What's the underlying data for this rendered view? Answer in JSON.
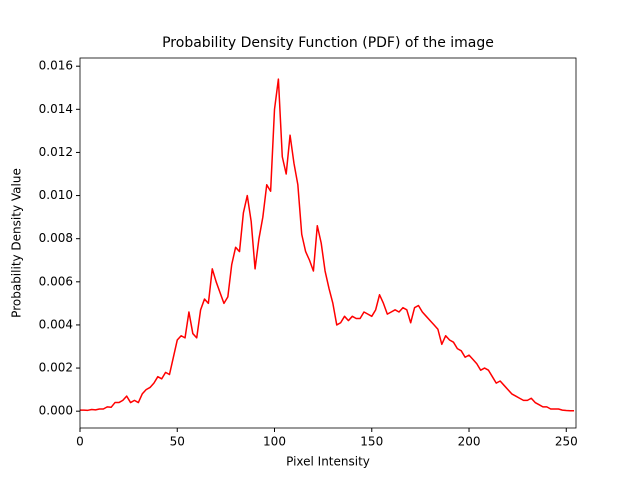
{
  "chart_data": {
    "type": "line",
    "title": "Probability Density Function (PDF) of the image",
    "xlabel": "Pixel Intensity",
    "ylabel": "Probability Density Value",
    "x": [
      0,
      2,
      4,
      6,
      8,
      10,
      12,
      14,
      16,
      18,
      20,
      22,
      24,
      26,
      28,
      30,
      32,
      34,
      36,
      38,
      40,
      42,
      44,
      46,
      48,
      50,
      52,
      54,
      56,
      58,
      60,
      62,
      64,
      66,
      68,
      70,
      72,
      74,
      76,
      78,
      80,
      82,
      84,
      86,
      88,
      90,
      92,
      94,
      96,
      98,
      100,
      102,
      104,
      106,
      108,
      110,
      112,
      114,
      116,
      118,
      120,
      122,
      124,
      126,
      128,
      130,
      132,
      134,
      136,
      138,
      140,
      142,
      144,
      146,
      148,
      150,
      152,
      154,
      156,
      158,
      160,
      162,
      164,
      166,
      168,
      170,
      172,
      174,
      176,
      178,
      180,
      182,
      184,
      186,
      188,
      190,
      192,
      194,
      196,
      198,
      200,
      202,
      204,
      206,
      208,
      210,
      212,
      214,
      216,
      218,
      220,
      222,
      224,
      226,
      228,
      230,
      232,
      234,
      236,
      238,
      240,
      242,
      244,
      246,
      248,
      250,
      252,
      254
    ],
    "series": [
      {
        "name": "PDF",
        "color": "#ff0000",
        "values": [
          5e-05,
          5e-05,
          4e-05,
          8e-05,
          6e-05,
          0.0001,
          0.0001,
          0.0002,
          0.00018,
          0.0004,
          0.0004,
          0.0005,
          0.0007,
          0.0004,
          0.0005,
          0.0004,
          0.0008,
          0.001,
          0.0011,
          0.0013,
          0.0016,
          0.0015,
          0.0018,
          0.0017,
          0.0025,
          0.0033,
          0.0035,
          0.0034,
          0.0046,
          0.0036,
          0.0034,
          0.0047,
          0.0052,
          0.005,
          0.0066,
          0.006,
          0.0055,
          0.005,
          0.0053,
          0.0068,
          0.0076,
          0.0074,
          0.0092,
          0.01,
          0.0088,
          0.0066,
          0.008,
          0.009,
          0.0105,
          0.0102,
          0.014,
          0.0154,
          0.0118,
          0.011,
          0.0128,
          0.0115,
          0.0105,
          0.0082,
          0.0074,
          0.007,
          0.0065,
          0.0086,
          0.0078,
          0.0065,
          0.0057,
          0.005,
          0.004,
          0.0041,
          0.0044,
          0.0042,
          0.0044,
          0.0043,
          0.0043,
          0.0046,
          0.0045,
          0.0044,
          0.0047,
          0.0054,
          0.005,
          0.0045,
          0.0046,
          0.0047,
          0.0046,
          0.0048,
          0.0047,
          0.0041,
          0.0048,
          0.0049,
          0.0046,
          0.0044,
          0.0042,
          0.004,
          0.0038,
          0.0031,
          0.0035,
          0.0033,
          0.0032,
          0.0029,
          0.0028,
          0.0025,
          0.0026,
          0.0024,
          0.0022,
          0.0019,
          0.002,
          0.0019,
          0.0016,
          0.0013,
          0.0014,
          0.0012,
          0.001,
          0.0008,
          0.0007,
          0.0006,
          0.0005,
          0.0005,
          0.0006,
          0.0004,
          0.0003,
          0.0002,
          0.0002,
          0.0001,
          0.0001,
          0.0001,
          5e-05,
          3e-05,
          2e-05,
          2e-05
        ]
      }
    ],
    "xlim": [
      0,
      255
    ],
    "ylim": [
      -0.00078,
      0.01638
    ],
    "xticks": [
      0,
      50,
      100,
      150,
      200,
      250
    ],
    "yticks": [
      {
        "value": 0,
        "label": "0.000"
      },
      {
        "value": 0.002,
        "label": "0.002"
      },
      {
        "value": 0.004,
        "label": "0.004"
      },
      {
        "value": 0.006,
        "label": "0.006"
      },
      {
        "value": 0.008,
        "label": "0.008"
      },
      {
        "value": 0.01,
        "label": "0.010"
      },
      {
        "value": 0.012,
        "label": "0.012"
      },
      {
        "value": 0.014,
        "label": "0.014"
      },
      {
        "value": 0.016,
        "label": "0.016"
      }
    ],
    "grid": false
  }
}
